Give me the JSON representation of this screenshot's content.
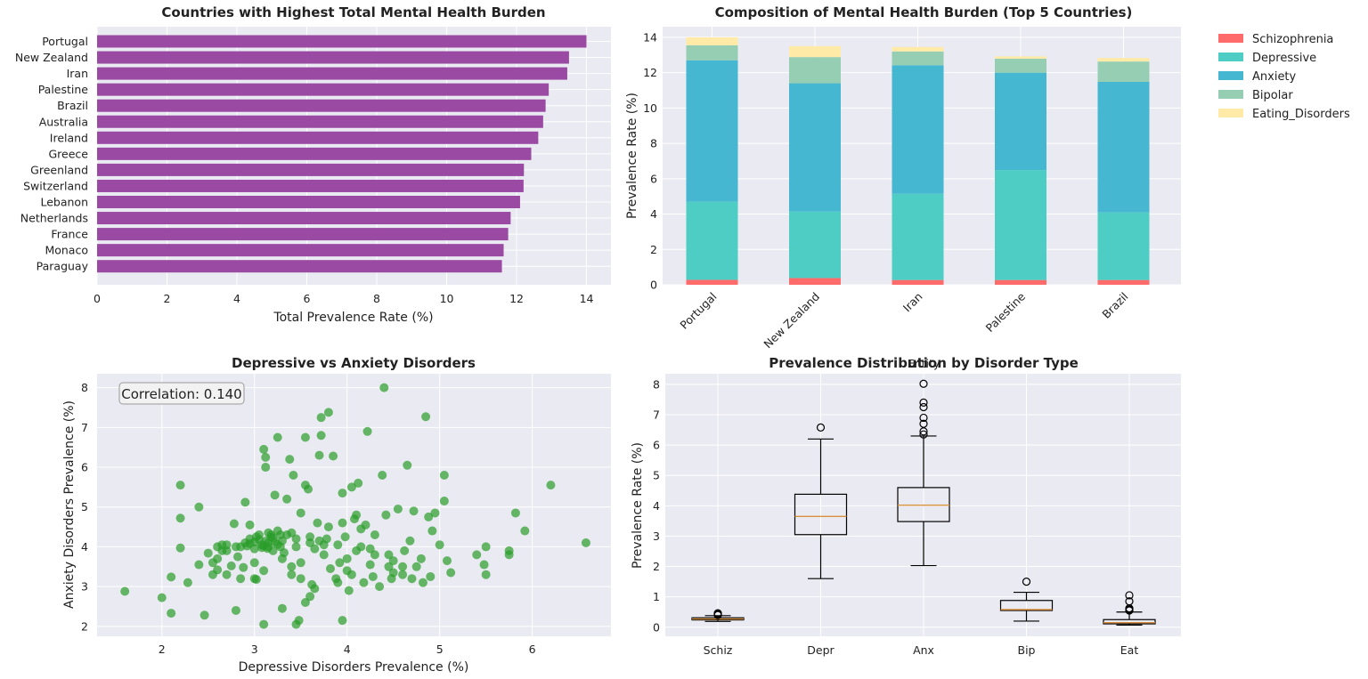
{
  "chart_data": [
    {
      "type": "bar",
      "orientation": "horizontal",
      "title": "Countries with Highest Total Mental Health Burden",
      "xlabel": "Total Prevalence Rate (%)",
      "ylabel": "",
      "xlim": [
        0,
        14.7
      ],
      "xticks": [
        "0",
        "2",
        "4",
        "6",
        "8",
        "10",
        "12",
        "14"
      ],
      "categories": [
        "Portugal",
        "New Zealand",
        "Iran",
        "Palestine",
        "Brazil",
        "Australia",
        "Ireland",
        "Greece",
        "Greenland",
        "Switzerland",
        "Lebanon",
        "Netherlands",
        "France",
        "Monaco",
        "Paraguay"
      ],
      "values": [
        14.0,
        13.5,
        13.45,
        12.92,
        12.83,
        12.76,
        12.62,
        12.42,
        12.21,
        12.2,
        12.1,
        11.83,
        11.76,
        11.63,
        11.58
      ],
      "color": "#9b4aa3",
      "grid": true
    },
    {
      "type": "bar",
      "stacked": true,
      "title": "Composition of Mental Health Burden (Top 5 Countries)",
      "xlabel": "",
      "ylabel": "Prevalence Rate (%)",
      "ylim": [
        0,
        14.6
      ],
      "yticks": [
        "0",
        "2",
        "4",
        "6",
        "8",
        "10",
        "12",
        "14"
      ],
      "categories": [
        "Portugal",
        "New Zealand",
        "Iran",
        "Palestine",
        "Brazil"
      ],
      "legend_position": "outside-right",
      "series": [
        {
          "name": "Schizophrenia",
          "color": "#ff6b6b",
          "values": [
            0.28,
            0.38,
            0.27,
            0.27,
            0.27
          ]
        },
        {
          "name": "Depressive",
          "color": "#4ecdc4",
          "values": [
            4.42,
            3.76,
            4.88,
            6.22,
            3.82
          ]
        },
        {
          "name": "Anxiety",
          "color": "#45b7d1",
          "values": [
            8.0,
            7.26,
            7.27,
            5.51,
            7.39
          ]
        },
        {
          "name": "Bipolar",
          "color": "#96ceb4",
          "values": [
            0.85,
            1.48,
            0.78,
            0.79,
            1.15
          ]
        },
        {
          "name": "Eating_Disorders",
          "color": "#ffeaa7",
          "values": [
            0.45,
            0.62,
            0.25,
            0.13,
            0.2
          ]
        }
      ]
    },
    {
      "type": "scatter",
      "title": "Depressive vs Anxiety Disorders",
      "xlabel": "Depressive Disorders Prevalence (%)",
      "ylabel": "Anxiety Disorders Prevalence (%)",
      "xlim": [
        1.3,
        6.85
      ],
      "ylim": [
        1.75,
        8.35
      ],
      "xticks": [
        "2",
        "3",
        "4",
        "5",
        "6"
      ],
      "yticks": [
        "2",
        "3",
        "4",
        "5",
        "6",
        "7",
        "8"
      ],
      "annotation": "Correlation: 0.140",
      "color": "#2a9d2a",
      "points": [
        [
          1.6,
          2.88
        ],
        [
          2.0,
          2.72
        ],
        [
          2.1,
          2.33
        ],
        [
          2.28,
          3.1
        ],
        [
          2.1,
          3.24
        ],
        [
          2.2,
          3.97
        ],
        [
          2.2,
          4.72
        ],
        [
          2.2,
          5.55
        ],
        [
          2.4,
          5.0
        ],
        [
          2.46,
          2.28
        ],
        [
          2.4,
          3.55
        ],
        [
          2.5,
          3.84
        ],
        [
          2.55,
          3.6
        ],
        [
          2.6,
          3.42
        ],
        [
          2.6,
          3.7
        ],
        [
          2.65,
          4.05
        ],
        [
          2.7,
          3.3
        ],
        [
          2.7,
          3.9
        ],
        [
          2.75,
          3.52
        ],
        [
          2.78,
          4.58
        ],
        [
          2.8,
          4.0
        ],
        [
          2.82,
          3.75
        ],
        [
          2.85,
          3.2
        ],
        [
          2.88,
          3.48
        ],
        [
          2.9,
          4.1
        ],
        [
          2.9,
          5.12
        ],
        [
          2.95,
          4.2
        ],
        [
          2.95,
          4.55
        ],
        [
          3.0,
          3.95
        ],
        [
          3.0,
          3.6
        ],
        [
          3.02,
          3.18
        ],
        [
          3.05,
          4.3
        ],
        [
          3.08,
          4.05
        ],
        [
          3.1,
          3.4
        ],
        [
          3.1,
          6.45
        ],
        [
          3.12,
          6.25
        ],
        [
          3.12,
          6.0
        ],
        [
          3.15,
          4.0
        ],
        [
          3.15,
          4.35
        ],
        [
          3.18,
          4.25
        ],
        [
          3.2,
          3.9
        ],
        [
          3.22,
          5.3
        ],
        [
          3.25,
          4.4
        ],
        [
          3.25,
          6.75
        ],
        [
          3.28,
          4.3
        ],
        [
          3.3,
          4.15
        ],
        [
          3.3,
          2.45
        ],
        [
          3.32,
          3.85
        ],
        [
          3.35,
          5.2
        ],
        [
          3.38,
          6.2
        ],
        [
          3.4,
          3.5
        ],
        [
          3.42,
          5.8
        ],
        [
          3.45,
          4.0
        ],
        [
          3.48,
          2.15
        ],
        [
          3.5,
          4.85
        ],
        [
          3.5,
          3.6
        ],
        [
          3.55,
          6.75
        ],
        [
          3.55,
          5.55
        ],
        [
          3.58,
          5.45
        ],
        [
          3.6,
          4.25
        ],
        [
          3.62,
          3.05
        ],
        [
          3.65,
          2.95
        ],
        [
          3.68,
          4.6
        ],
        [
          3.7,
          6.3
        ],
        [
          3.72,
          7.25
        ],
        [
          3.72,
          6.8
        ],
        [
          3.75,
          3.8
        ],
        [
          3.78,
          4.2
        ],
        [
          3.8,
          7.38
        ],
        [
          3.82,
          3.45
        ],
        [
          3.85,
          6.28
        ],
        [
          3.88,
          3.2
        ],
        [
          3.9,
          4.05
        ],
        [
          3.92,
          3.6
        ],
        [
          3.95,
          5.35
        ],
        [
          3.95,
          2.15
        ],
        [
          3.98,
          4.25
        ],
        [
          4.0,
          3.4
        ],
        [
          4.02,
          2.9
        ],
        [
          4.05,
          5.5
        ],
        [
          4.08,
          4.7
        ],
        [
          4.1,
          3.9
        ],
        [
          4.12,
          5.6
        ],
        [
          4.15,
          4.0
        ],
        [
          4.18,
          3.1
        ],
        [
          4.22,
          6.9
        ],
        [
          4.25,
          3.55
        ],
        [
          4.28,
          3.25
        ],
        [
          4.3,
          3.8
        ],
        [
          4.35,
          3.0
        ],
        [
          4.38,
          5.8
        ],
        [
          4.4,
          8.0
        ],
        [
          4.42,
          4.8
        ],
        [
          4.45,
          3.5
        ],
        [
          4.48,
          3.2
        ],
        [
          4.5,
          3.65
        ],
        [
          4.55,
          4.95
        ],
        [
          4.6,
          3.3
        ],
        [
          4.62,
          3.9
        ],
        [
          4.65,
          6.05
        ],
        [
          4.68,
          4.15
        ],
        [
          4.72,
          4.9
        ],
        [
          4.75,
          3.5
        ],
        [
          4.8,
          3.7
        ],
        [
          4.82,
          3.1
        ],
        [
          4.85,
          7.27
        ],
        [
          4.88,
          4.75
        ],
        [
          4.9,
          3.25
        ],
        [
          4.92,
          4.4
        ],
        [
          4.95,
          4.85
        ],
        [
          5.0,
          4.05
        ],
        [
          5.05,
          5.8
        ],
        [
          5.05,
          5.15
        ],
        [
          5.08,
          3.65
        ],
        [
          5.12,
          3.35
        ],
        [
          5.4,
          3.8
        ],
        [
          5.48,
          3.55
        ],
        [
          5.5,
          3.3
        ],
        [
          5.5,
          4.0
        ],
        [
          5.75,
          3.9
        ],
        [
          5.75,
          3.8
        ],
        [
          5.82,
          4.85
        ],
        [
          5.92,
          4.4
        ],
        [
          6.2,
          5.55
        ],
        [
          6.58,
          4.1
        ],
        [
          2.95,
          4.08
        ],
        [
          3.0,
          4.12
        ],
        [
          3.05,
          4.18
        ],
        [
          3.1,
          4.02
        ],
        [
          3.15,
          4.1
        ],
        [
          3.2,
          4.22
        ],
        [
          3.25,
          4.06
        ],
        [
          3.18,
          4.3
        ],
        [
          3.08,
          3.98
        ],
        [
          3.12,
          4.14
        ],
        [
          2.92,
          4.02
        ],
        [
          3.22,
          4.12
        ],
        [
          3.28,
          4.0
        ],
        [
          3.02,
          4.25
        ],
        [
          3.14,
          3.96
        ],
        [
          3.35,
          4.3
        ],
        [
          3.4,
          4.35
        ],
        [
          3.45,
          4.2
        ],
        [
          3.6,
          4.1
        ],
        [
          3.65,
          3.95
        ],
        [
          3.7,
          4.15
        ],
        [
          3.75,
          4.05
        ],
        [
          2.6,
          4.0
        ],
        [
          2.7,
          4.05
        ],
        [
          2.85,
          4.0
        ],
        [
          3.3,
          3.7
        ],
        [
          3.4,
          3.3
        ],
        [
          3.5,
          3.2
        ],
        [
          3.55,
          2.6
        ],
        [
          3.6,
          2.75
        ],
        [
          3.9,
          3.1
        ],
        [
          4.0,
          3.7
        ],
        [
          4.05,
          3.3
        ],
        [
          4.2,
          4.55
        ],
        [
          4.25,
          3.95
        ],
        [
          4.3,
          4.3
        ],
        [
          4.45,
          3.8
        ],
        [
          4.5,
          3.35
        ],
        [
          4.6,
          3.5
        ],
        [
          4.7,
          3.2
        ],
        [
          3.45,
          2.05
        ],
        [
          3.1,
          2.05
        ],
        [
          2.8,
          2.4
        ],
        [
          3.0,
          3.2
        ],
        [
          2.65,
          3.9
        ],
        [
          2.55,
          3.3
        ],
        [
          3.8,
          4.5
        ],
        [
          3.95,
          4.6
        ],
        [
          4.1,
          4.8
        ],
        [
          4.15,
          4.45
        ]
      ]
    },
    {
      "type": "box",
      "title": "Prevalence Distribution by Disorder Type",
      "subtitle": "Entity",
      "xlabel": "",
      "ylabel": "Prevalence Rate (%)",
      "ylim": [
        -0.3,
        8.35
      ],
      "yticks": [
        "0",
        "1",
        "2",
        "3",
        "4",
        "5",
        "6",
        "7",
        "8"
      ],
      "categories": [
        "Schiz",
        "Depr",
        "Anx",
        "Bip",
        "Eat"
      ],
      "boxes": [
        {
          "whislo": 0.19,
          "q1": 0.24,
          "med": 0.27,
          "q3": 0.31,
          "whishi": 0.38,
          "fliers": [
            0.4,
            0.43,
            0.46
          ]
        },
        {
          "whislo": 1.6,
          "q1": 3.05,
          "med": 3.65,
          "q3": 4.38,
          "whishi": 6.2,
          "fliers": [
            6.58
          ]
        },
        {
          "whislo": 2.03,
          "q1": 3.48,
          "med": 4.02,
          "q3": 4.6,
          "whishi": 6.3,
          "fliers": [
            6.35,
            6.45,
            6.7,
            6.9,
            7.25,
            7.4,
            8.02
          ]
        },
        {
          "whislo": 0.2,
          "q1": 0.55,
          "med": 0.58,
          "q3": 0.88,
          "whishi": 1.15,
          "fliers": [
            1.5
          ]
        },
        {
          "whislo": 0.07,
          "q1": 0.11,
          "med": 0.15,
          "q3": 0.25,
          "whishi": 0.5,
          "fliers": [
            0.55,
            0.58,
            0.62,
            0.85,
            1.05
          ]
        }
      ]
    }
  ]
}
